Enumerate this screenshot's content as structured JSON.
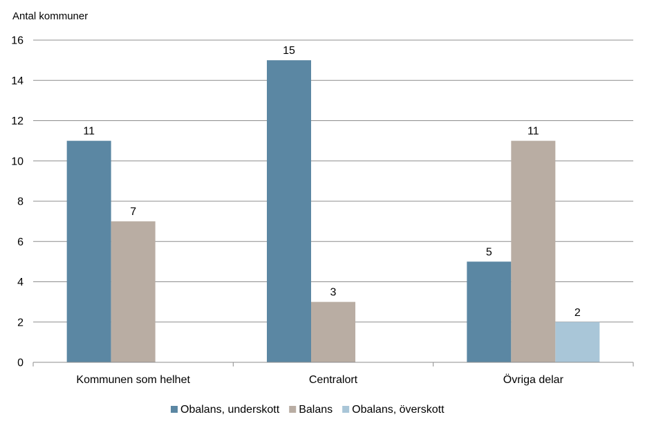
{
  "chart_data": {
    "type": "bar",
    "ylabel": "Antal kommuner",
    "ylim": [
      0,
      16
    ],
    "yticks": [
      "0",
      "2",
      "4",
      "6",
      "8",
      "10",
      "12",
      "14",
      "16"
    ],
    "grid": true,
    "legend_position": "bottom",
    "categories": [
      "Kommunen som helhet",
      "Centralort",
      "Övriga delar"
    ],
    "series": [
      {
        "name": "Obalans, underskott",
        "color": "#5b87a3",
        "values": [
          11,
          15,
          5
        ]
      },
      {
        "name": "Balans",
        "color": "#b9ada3",
        "values": [
          7,
          3,
          11
        ]
      },
      {
        "name": "Obalans, överskott",
        "color": "#a9c6d8",
        "values": [
          null,
          null,
          2
        ]
      }
    ]
  }
}
